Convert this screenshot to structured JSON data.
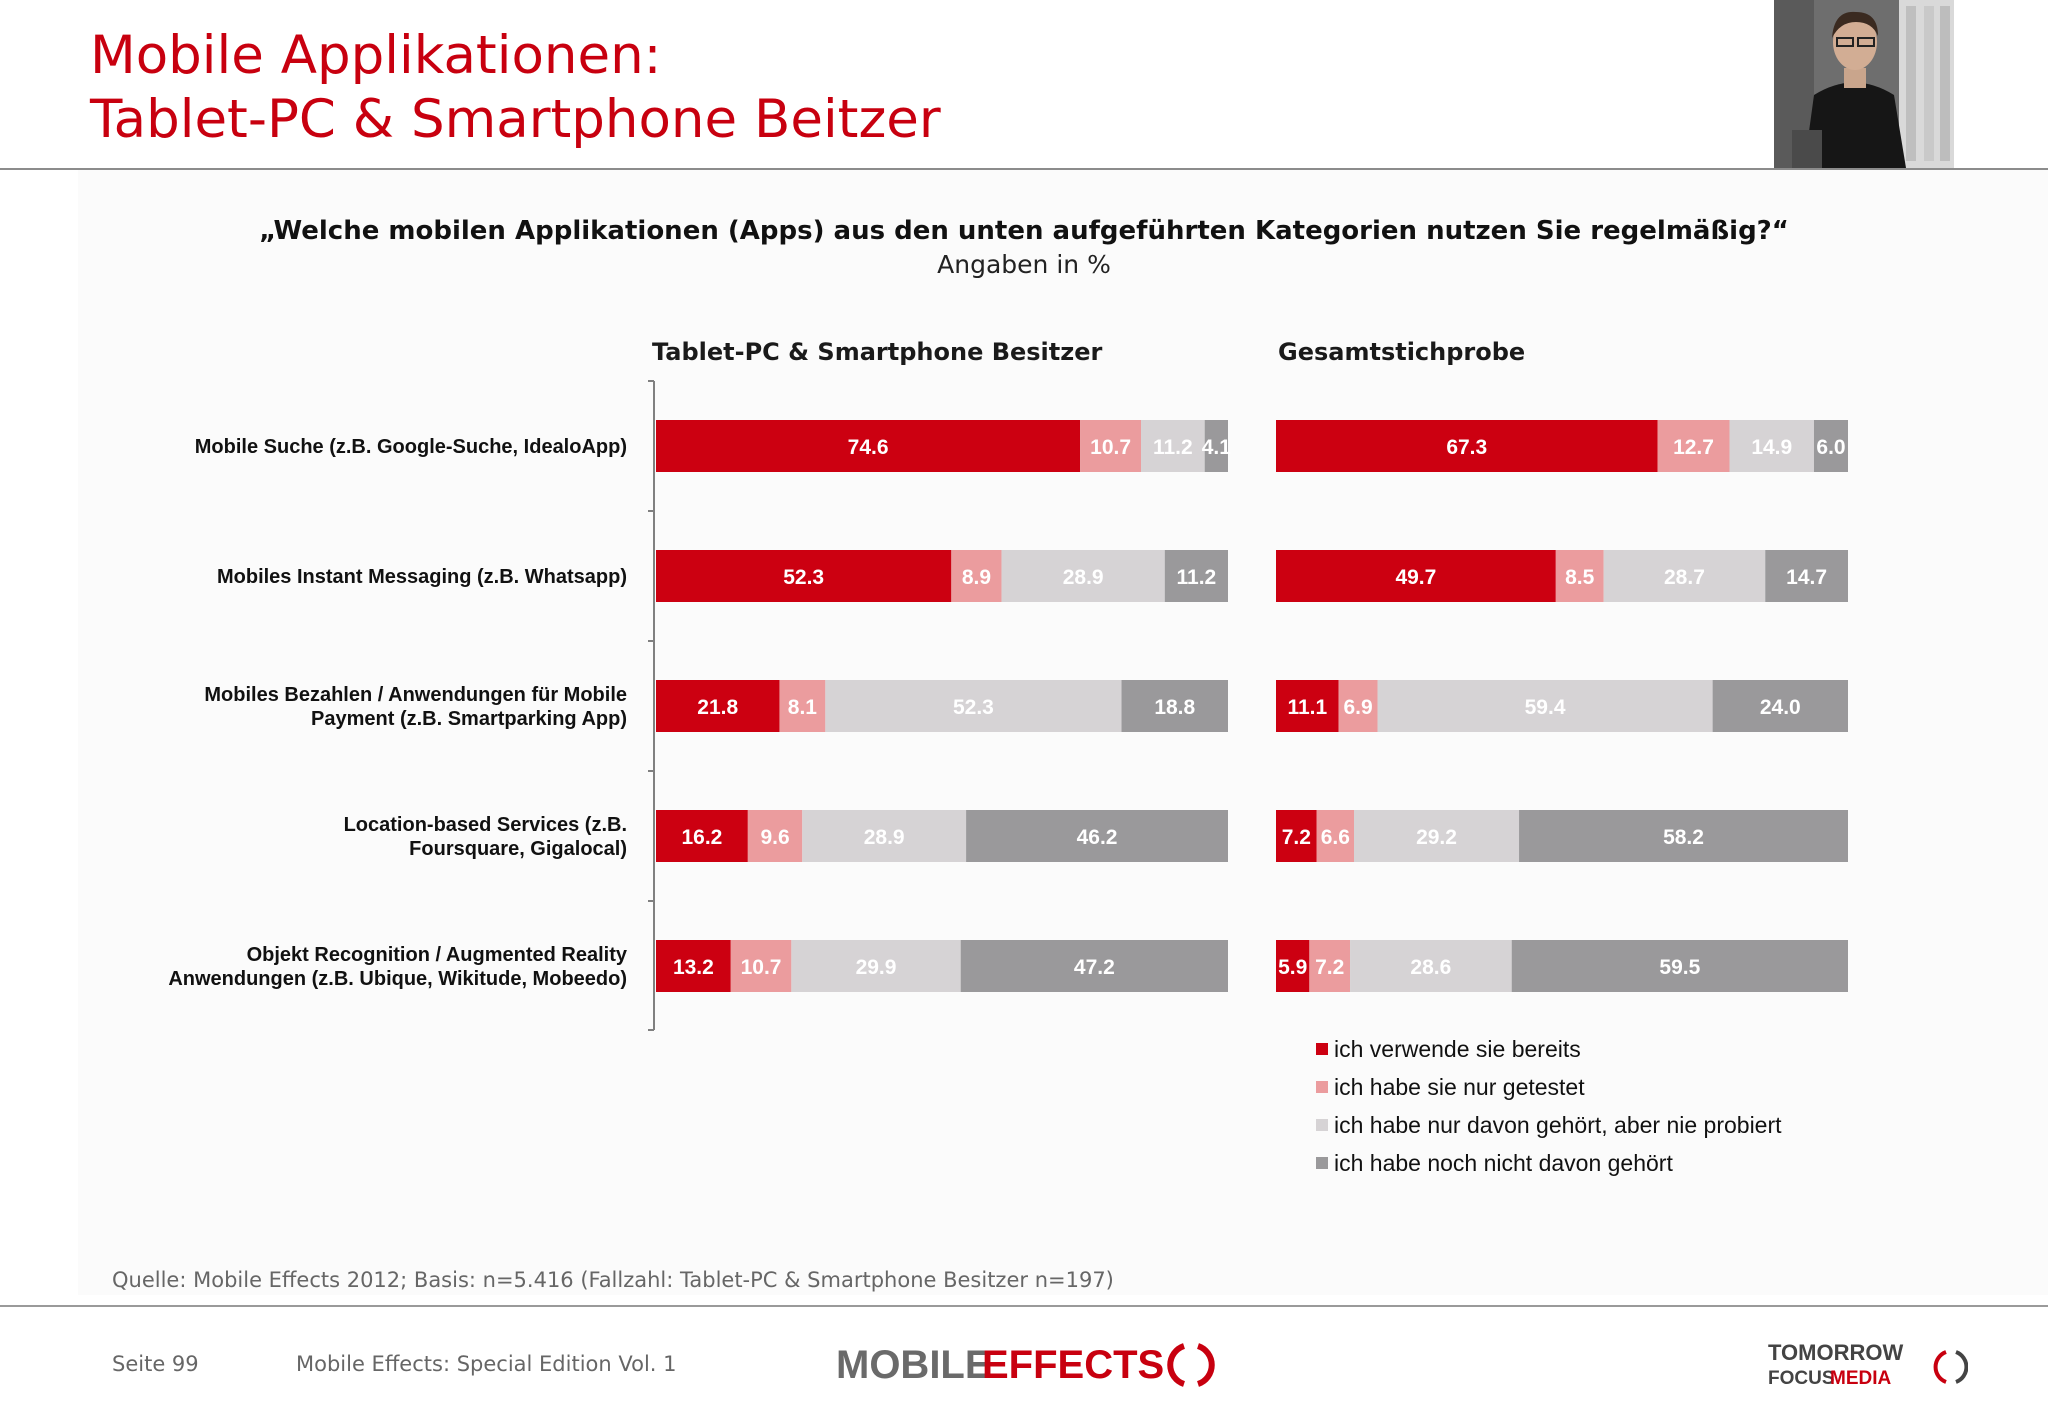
{
  "page": {
    "title_line1": "Mobile Applikationen:",
    "title_line2": "Tablet-PC & Smartphone Beitzer",
    "question": "„Welche mobilen Applikationen (Apps) aus den unten aufgeführten Kategorien nutzen Sie regelmäßig?“",
    "unit": "Angaben in %",
    "source": "Quelle: Mobile Effects 2012; Basis: n=5.416 (Fallzahl: Tablet-PC & Smartphone Besitzer n=197)",
    "page_number": "Seite 99",
    "publication": "Mobile Effects: Special Edition Vol. 1",
    "logo_left_part1": "MOBILE",
    "logo_left_part2": "EFFECTS",
    "logo_right_line1": "TOMORROW",
    "logo_right_line2": "FOCUS",
    "logo_right_line3": "MEDIA"
  },
  "chart_data": {
    "type": "bar",
    "orientation": "horizontal",
    "stacked": true,
    "categories": [
      [
        "Mobile Suche (z.B. Google-Suche, IdealoApp)"
      ],
      [
        "Mobiles Instant Messaging (z.B. Whatsapp)"
      ],
      [
        "Mobiles Bezahlen / Anwendungen für Mobile",
        "Payment (z.B. Smartparking App)"
      ],
      [
        "Location-based Services (z.B.",
        "Foursquare, Gigalocal)"
      ],
      [
        "Objekt Recognition / Augmented Reality",
        "Anwendungen (z.B. Ubique, Wikitude, Mobeedo)"
      ]
    ],
    "series_names": [
      "ich verwende sie bereits",
      "ich habe sie nur getestet",
      "ich habe nur davon gehört, aber nie probiert",
      "ich habe noch nicht davon gehört"
    ],
    "series_colors": [
      "#cc0011",
      "#eb9c9e",
      "#d6d3d5",
      "#9a999b"
    ],
    "panels": [
      {
        "title": "Tablet-PC & Smartphone Besitzer",
        "rows": [
          [
            74.6,
            10.7,
            11.2,
            4.1
          ],
          [
            52.3,
            8.9,
            28.9,
            11.2
          ],
          [
            21.8,
            8.1,
            52.3,
            18.8
          ],
          [
            16.2,
            9.6,
            28.9,
            46.2
          ],
          [
            13.2,
            10.7,
            29.9,
            47.2
          ]
        ],
        "labels": [
          [
            "74.6",
            "10.7",
            "11.2",
            "4.1"
          ],
          [
            "52.3",
            "8.9",
            "28.9",
            "11.2"
          ],
          [
            "21.8",
            "8.1",
            "52.3",
            "18.8"
          ],
          [
            "16.2",
            "9.6",
            "28.9",
            "46.2"
          ],
          [
            "13.2",
            "10.7",
            "29.9",
            "47.2"
          ]
        ]
      },
      {
        "title": "Gesamtstichprobe",
        "rows": [
          [
            67.3,
            12.7,
            14.9,
            6.0
          ],
          [
            49.7,
            8.5,
            28.7,
            14.7
          ],
          [
            11.1,
            6.9,
            59.4,
            24.0
          ],
          [
            7.2,
            6.6,
            29.2,
            58.2
          ],
          [
            5.9,
            7.2,
            28.6,
            59.5
          ]
        ],
        "labels": [
          [
            "67.3",
            "12.7",
            "14.9",
            "6.0"
          ],
          [
            "49.7",
            "8.5",
            "28.7",
            "14.7"
          ],
          [
            "11.1",
            "6.9",
            "59.4",
            "24.0"
          ],
          [
            "7.2",
            "6.6",
            "29.2",
            "58.2"
          ],
          [
            "5.9",
            "7.2",
            "28.6",
            "59.5"
          ]
        ]
      }
    ],
    "legend_position": "bottom-right",
    "grid": false
  }
}
